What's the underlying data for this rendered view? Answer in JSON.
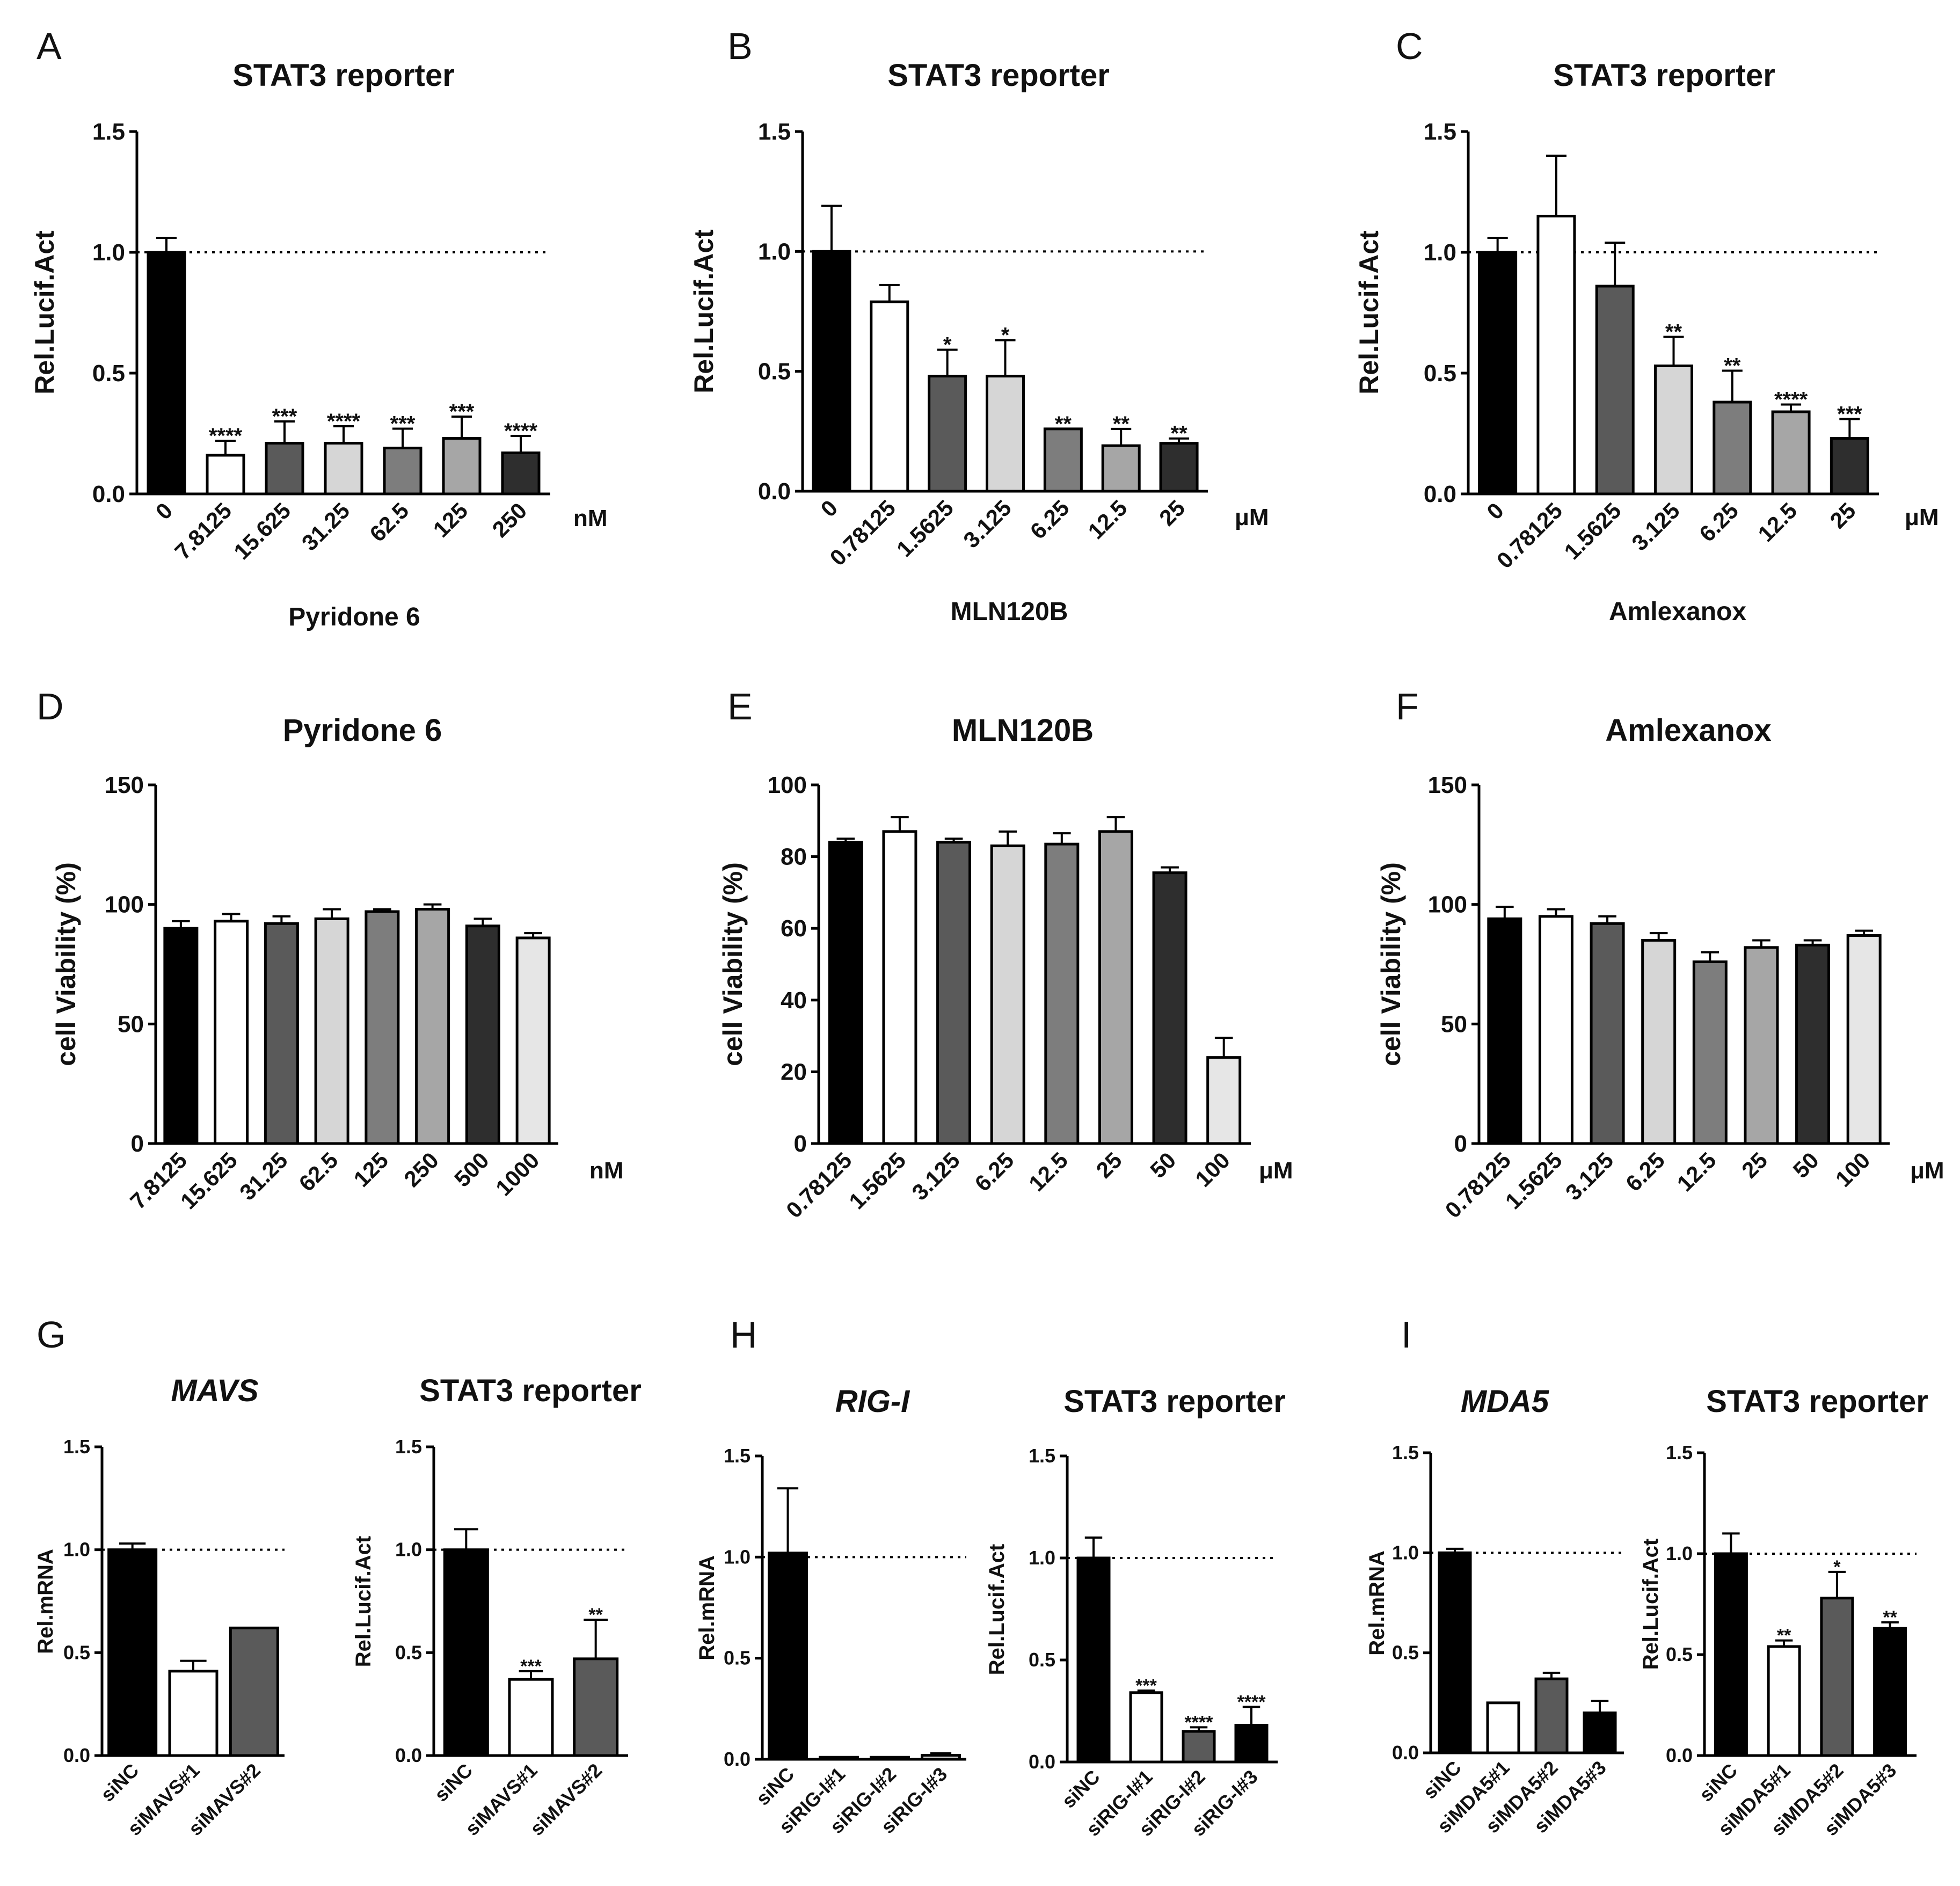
{
  "panels": [
    {
      "letter": "A",
      "chart_data": {
        "type": "bar",
        "title": "STAT3 reporter",
        "ylabel": "Rel.Lucif.Act",
        "xlabel": "Pyridone 6",
        "unit": "nM",
        "ylim": [
          0,
          1.5
        ],
        "yticks": [
          "0.0",
          "0.5",
          "1.0",
          "1.5"
        ],
        "reference_line": 1.0,
        "categories": [
          "0",
          "7.8125",
          "15.625",
          "31.25",
          "62.5",
          "125",
          "250"
        ],
        "values": [
          1.0,
          0.16,
          0.21,
          0.21,
          0.19,
          0.23,
          0.17
        ],
        "errors": [
          0.06,
          0.06,
          0.09,
          0.07,
          0.08,
          0.09,
          0.07
        ],
        "significance": [
          "",
          "****",
          "***",
          "****",
          "***",
          "***",
          "****"
        ],
        "colors": [
          "#000000",
          "#ffffff",
          "#5a5a5a",
          "#d6d6d6",
          "#7d7d7d",
          "#a6a6a6",
          "#2e2e2e"
        ]
      }
    },
    {
      "letter": "B",
      "chart_data": {
        "type": "bar",
        "title": "STAT3 reporter",
        "ylabel": "Rel.Lucif.Act",
        "xlabel": "MLN120B",
        "unit": "μM",
        "ylim": [
          0,
          1.5
        ],
        "yticks": [
          "0.0",
          "0.5",
          "1.0",
          "1.5"
        ],
        "reference_line": 1.0,
        "categories": [
          "0",
          "0.78125",
          "1.5625",
          "3.125",
          "6.25",
          "12.5",
          "25"
        ],
        "values": [
          1.0,
          0.79,
          0.48,
          0.48,
          0.26,
          0.19,
          0.2
        ],
        "errors": [
          0.19,
          0.07,
          0.11,
          0.15,
          0.0,
          0.07,
          0.02
        ],
        "significance": [
          "",
          "",
          "*",
          "*",
          "**",
          "**",
          "**"
        ],
        "colors": [
          "#000000",
          "#ffffff",
          "#5a5a5a",
          "#d6d6d6",
          "#7d7d7d",
          "#a6a6a6",
          "#2e2e2e"
        ]
      }
    },
    {
      "letter": "C",
      "chart_data": {
        "type": "bar",
        "title": "STAT3 reporter",
        "ylabel": "Rel.Lucif.Act",
        "xlabel": "Amlexanox",
        "unit": "μM",
        "ylim": [
          0,
          1.5
        ],
        "yticks": [
          "0.0",
          "0.5",
          "1.0",
          "1.5"
        ],
        "reference_line": 1.0,
        "categories": [
          "0",
          "0.78125",
          "1.5625",
          "3.125",
          "6.25",
          "12.5",
          "25"
        ],
        "values": [
          1.0,
          1.15,
          0.86,
          0.53,
          0.38,
          0.34,
          0.23
        ],
        "errors": [
          0.06,
          0.25,
          0.18,
          0.12,
          0.13,
          0.03,
          0.08
        ],
        "significance": [
          "",
          "",
          "",
          "**",
          "**",
          "****",
          "***"
        ],
        "colors": [
          "#000000",
          "#ffffff",
          "#5a5a5a",
          "#d6d6d6",
          "#7d7d7d",
          "#a6a6a6",
          "#2e2e2e"
        ]
      }
    },
    {
      "letter": "D",
      "chart_data": {
        "type": "bar",
        "title": "Pyridone 6",
        "ylabel": "cell Viability (%)",
        "xlabel": "",
        "unit": "nM",
        "ylim": [
          0,
          150
        ],
        "yticks": [
          "0",
          "50",
          "100",
          "150"
        ],
        "reference_line": 0,
        "categories": [
          "7.8125",
          "15.625",
          "31.25",
          "62.5",
          "125",
          "250",
          "500",
          "1000"
        ],
        "values": [
          90,
          93,
          92,
          94,
          97,
          98,
          91,
          86
        ],
        "errors": [
          3,
          3,
          3,
          4,
          1,
          2,
          3,
          2
        ],
        "significance": [
          "",
          "",
          "",
          "",
          "",
          "",
          "",
          ""
        ],
        "colors": [
          "#000000",
          "#ffffff",
          "#5a5a5a",
          "#d6d6d6",
          "#7d7d7d",
          "#a6a6a6",
          "#2e2e2e",
          "#e6e6e6"
        ]
      }
    },
    {
      "letter": "E",
      "chart_data": {
        "type": "bar",
        "title": "MLN120B",
        "ylabel": "cell Viability (%)",
        "xlabel": "",
        "unit": "μM",
        "ylim": [
          0,
          100
        ],
        "yticks": [
          "0",
          "20",
          "40",
          "60",
          "80",
          "100"
        ],
        "reference_line": 0,
        "categories": [
          "0.78125",
          "1.5625",
          "3.125",
          "6.25",
          "12.5",
          "25",
          "50",
          "100"
        ],
        "values": [
          84,
          87,
          84,
          83,
          83.5,
          87,
          75.5,
          24
        ],
        "errors": [
          1,
          4,
          1,
          4,
          3,
          4,
          1.5,
          5.5
        ],
        "significance": [
          "",
          "",
          "",
          "",
          "",
          "",
          "",
          ""
        ],
        "colors": [
          "#000000",
          "#ffffff",
          "#5a5a5a",
          "#d6d6d6",
          "#7d7d7d",
          "#a6a6a6",
          "#2e2e2e",
          "#e6e6e6"
        ]
      }
    },
    {
      "letter": "F",
      "chart_data": {
        "type": "bar",
        "title": "Amlexanox",
        "ylabel": "cell Viability (%)",
        "xlabel": "",
        "unit": "μM",
        "ylim": [
          0,
          150
        ],
        "yticks": [
          "0",
          "50",
          "100",
          "150"
        ],
        "reference_line": 0,
        "categories": [
          "0.78125",
          "1.5625",
          "3.125",
          "6.25",
          "12.5",
          "25",
          "50",
          "100"
        ],
        "values": [
          94,
          95,
          92,
          85,
          76,
          82,
          83,
          87
        ],
        "errors": [
          5,
          3,
          3,
          3,
          4,
          3,
          2,
          2
        ],
        "significance": [
          "",
          "",
          "",
          "",
          "",
          "",
          "",
          ""
        ],
        "colors": [
          "#000000",
          "#ffffff",
          "#5a5a5a",
          "#d6d6d6",
          "#7d7d7d",
          "#a6a6a6",
          "#2e2e2e",
          "#e6e6e6"
        ]
      }
    },
    {
      "letter": "G",
      "chart_data": {
        "type": "bar",
        "title": "MAVS",
        "italic_title": true,
        "ylabel": "Rel.mRNA",
        "xlabel": "",
        "unit": "",
        "ylim": [
          0,
          1.5
        ],
        "yticks": [
          "0.0",
          "0.5",
          "1.0",
          "1.5"
        ],
        "reference_line": 1.0,
        "categories": [
          "siNC",
          "siMAVS#1",
          "siMAVS#2"
        ],
        "values": [
          1.0,
          0.41,
          0.62
        ],
        "errors": [
          0.03,
          0.05,
          0.0
        ],
        "significance": [
          "",
          "",
          ""
        ],
        "colors": [
          "#000000",
          "#ffffff",
          "#5a5a5a"
        ]
      }
    },
    {
      "letter": "",
      "chart_data": {
        "type": "bar",
        "title": "STAT3 reporter",
        "ylabel": "Rel.Lucif.Act",
        "xlabel": "",
        "unit": "",
        "ylim": [
          0,
          1.5
        ],
        "yticks": [
          "0.0",
          "0.5",
          "1.0",
          "1.5"
        ],
        "reference_line": 1.0,
        "categories": [
          "siNC",
          "siMAVS#1",
          "siMAVS#2"
        ],
        "values": [
          1.0,
          0.37,
          0.47
        ],
        "errors": [
          0.1,
          0.04,
          0.19
        ],
        "significance": [
          "",
          "***",
          "**"
        ],
        "colors": [
          "#000000",
          "#ffffff",
          "#5a5a5a"
        ]
      }
    },
    {
      "letter": "H",
      "chart_data": {
        "type": "bar",
        "title": "RIG-I",
        "italic_title": true,
        "ylabel": "Rel.mRNA",
        "xlabel": "",
        "unit": "",
        "ylim": [
          0,
          1.5
        ],
        "yticks": [
          "0.0",
          "0.5",
          "1.0",
          "1.5"
        ],
        "reference_line": 1.0,
        "categories": [
          "siNC",
          "siRIG-I#1",
          "siRIG-I#2",
          "siRIG-I#3"
        ],
        "values": [
          1.02,
          0.01,
          0.01,
          0.02
        ],
        "errors": [
          0.32,
          0.0,
          0.0,
          0.01
        ],
        "significance": [
          "",
          "",
          "",
          ""
        ],
        "colors": [
          "#000000",
          "#ffffff",
          "#5a5a5a",
          "#d6d6d6"
        ]
      }
    },
    {
      "letter": "",
      "chart_data": {
        "type": "bar",
        "title": "STAT3 reporter",
        "ylabel": "Rel.Lucif.Act",
        "xlabel": "",
        "unit": "",
        "ylim": [
          0,
          1.5
        ],
        "yticks": [
          "0.0",
          "0.5",
          "1.0",
          "1.5"
        ],
        "reference_line": 1.0,
        "categories": [
          "siNC",
          "siRIG-I#1",
          "siRIG-I#2",
          "siRIG-I#3"
        ],
        "values": [
          1.0,
          0.34,
          0.15,
          0.18
        ],
        "errors": [
          0.1,
          0.01,
          0.02,
          0.09
        ],
        "significance": [
          "",
          "***",
          "****",
          "****"
        ],
        "colors": [
          "#000000",
          "#ffffff",
          "#5a5a5a",
          "#000000"
        ]
      }
    },
    {
      "letter": "I",
      "chart_data": {
        "type": "bar",
        "title": "MDA5",
        "italic_title": true,
        "ylabel": "Rel.mRNA",
        "xlabel": "",
        "unit": "",
        "ylim": [
          0,
          1.5
        ],
        "yticks": [
          "0.0",
          "0.5",
          "1.0",
          "1.5"
        ],
        "reference_line": 1.0,
        "categories": [
          "siNC",
          "siMDA5#1",
          "siMDA5#2",
          "siMDA5#3"
        ],
        "values": [
          1.0,
          0.25,
          0.37,
          0.2
        ],
        "errors": [
          0.02,
          0.0,
          0.03,
          0.06
        ],
        "significance": [
          "",
          "",
          "",
          ""
        ],
        "colors": [
          "#000000",
          "#ffffff",
          "#5a5a5a",
          "#000000"
        ]
      }
    },
    {
      "letter": "",
      "chart_data": {
        "type": "bar",
        "title": "STAT3 reporter",
        "ylabel": "Rel.Lucif.Act",
        "xlabel": "",
        "unit": "",
        "ylim": [
          0,
          1.5
        ],
        "yticks": [
          "0.0",
          "0.5",
          "1.0",
          "1.5"
        ],
        "reference_line": 1.0,
        "categories": [
          "siNC",
          "siMDA5#1",
          "siMDA5#2",
          "siMDA5#3"
        ],
        "values": [
          1.0,
          0.54,
          0.78,
          0.63
        ],
        "errors": [
          0.1,
          0.03,
          0.13,
          0.03
        ],
        "significance": [
          "",
          "**",
          "*",
          "**"
        ],
        "colors": [
          "#000000",
          "#ffffff",
          "#5a5a5a",
          "#000000"
        ]
      }
    }
  ]
}
